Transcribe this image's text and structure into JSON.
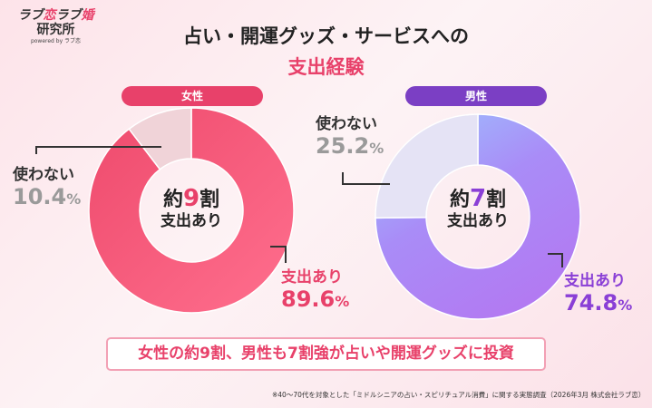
{
  "logo": {
    "line1a": "ラブ",
    "line1b": "恋",
    "line1c": "ラブ",
    "line1d": "婚",
    "line2": "研究所",
    "line3": "powered by ラブ恋"
  },
  "header": {
    "title": "占い・開運グッズ・サービスへの",
    "subtitle": "支出経験"
  },
  "chart_data": [
    {
      "type": "pie",
      "donut": true,
      "title": "女性",
      "center_main_prefix": "約",
      "center_main_num": "9",
      "center_main_suffix": "割",
      "center_sub": "支出あり",
      "slices": [
        {
          "label": "支出あり",
          "value": 89.6,
          "color": "#f2587a"
        },
        {
          "label": "使わない",
          "value": 10.4,
          "color": "#f0d3d8"
        }
      ],
      "accent": "#e8416a"
    },
    {
      "type": "pie",
      "donut": true,
      "title": "男性",
      "center_main_prefix": "約",
      "center_main_num": "7",
      "center_main_suffix": "割",
      "center_sub": "支出あり",
      "slices": [
        {
          "label": "支出あり",
          "value": 74.8,
          "color": "#a97ef5"
        },
        {
          "label": "使わない",
          "value": 25.2,
          "color": "#e5e3f5"
        }
      ],
      "accent": "#8a3fd6"
    }
  ],
  "labels": {
    "f_spend": "支出あり",
    "f_spend_val": "89.6",
    "f_none": "使わない",
    "f_none_val": "10.4",
    "m_spend": "支出あり",
    "m_spend_val": "74.8",
    "m_none": "使わない",
    "m_none_val": "25.2",
    "pct": "%"
  },
  "banner": "女性の約9割、男性も7割強が占いや開運グッズに投資",
  "note": "※40〜70代を対象とした「ミドルシニアの占い・スピリチュアル消費」に関する実態調査（2026年3月 株式会社ラブ恋）"
}
